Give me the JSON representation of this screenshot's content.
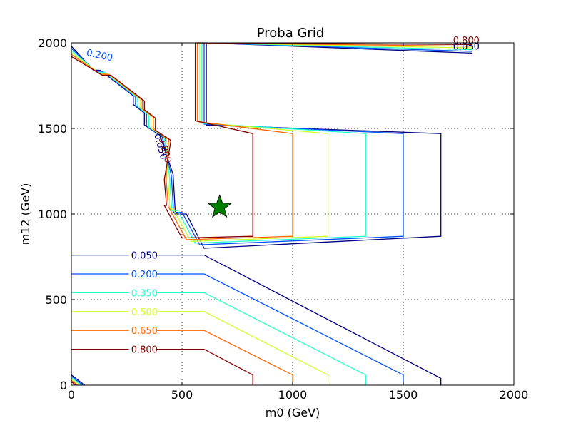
{
  "chart_data": {
    "type": "contour",
    "title": "Proba Grid",
    "xlabel": "m0 (GeV)",
    "ylabel": "m12 (GeV)",
    "xlim": [
      0,
      2000
    ],
    "ylim": [
      0,
      2000
    ],
    "xticks": [
      "0",
      "500",
      "1000",
      "1500",
      "2000"
    ],
    "yticks": [
      "0",
      "500",
      "1000",
      "1500",
      "2000"
    ],
    "grid": true,
    "marker": {
      "shape": "star",
      "color": "#008000",
      "x": 670,
      "y": 1040
    },
    "levels": [
      {
        "value": 0.05,
        "label": "0.050",
        "color": "#000080",
        "lower": [
          [
            0,
            760
          ],
          [
            600,
            760
          ],
          [
            1670,
            40
          ],
          [
            1670,
            0
          ]
        ],
        "upper": [
          [
            460,
            1560
          ],
          [
            520,
            1000
          ],
          [
            600,
            800
          ],
          [
            1670,
            870
          ],
          [
            1670,
            1470
          ],
          [
            610,
            1520
          ],
          [
            610,
            2000
          ]
        ],
        "topright": [
          [
            610,
            2000
          ],
          [
            1810,
            1940
          ]
        ]
      },
      {
        "value": 0.2,
        "label": "0.200",
        "color": "#0050ff",
        "lower": [
          [
            0,
            650
          ],
          [
            600,
            650
          ],
          [
            1500,
            60
          ],
          [
            1500,
            0
          ]
        ],
        "upper": [
          [
            440,
            1590
          ],
          [
            500,
            1010
          ],
          [
            580,
            820
          ],
          [
            1500,
            870
          ],
          [
            1500,
            1470
          ],
          [
            600,
            1525
          ],
          [
            600,
            2000
          ]
        ],
        "topright": [
          [
            600,
            2000
          ],
          [
            1810,
            1950
          ]
        ]
      },
      {
        "value": 0.35,
        "label": "0.350",
        "color": "#29ffce",
        "lower": [
          [
            0,
            540
          ],
          [
            600,
            540
          ],
          [
            1330,
            60
          ],
          [
            1330,
            0
          ]
        ],
        "upper": [
          [
            420,
            1610
          ],
          [
            480,
            1020
          ],
          [
            560,
            830
          ],
          [
            1330,
            870
          ],
          [
            1330,
            1470
          ],
          [
            590,
            1530
          ],
          [
            590,
            2000
          ]
        ],
        "topright": [
          [
            590,
            2000
          ],
          [
            1810,
            1960
          ]
        ]
      },
      {
        "value": 0.5,
        "label": "0.500",
        "color": "#ceff29",
        "lower": [
          [
            0,
            430
          ],
          [
            600,
            430
          ],
          [
            1160,
            60
          ],
          [
            1160,
            0
          ]
        ],
        "upper": [
          [
            400,
            1630
          ],
          [
            460,
            1030
          ],
          [
            540,
            840
          ],
          [
            1160,
            870
          ],
          [
            1160,
            1470
          ],
          [
            580,
            1535
          ],
          [
            580,
            2000
          ]
        ],
        "topright": [
          [
            580,
            2000
          ],
          [
            1810,
            1970
          ]
        ]
      },
      {
        "value": 0.65,
        "label": "0.650",
        "color": "#ff6800",
        "lower": [
          [
            0,
            320
          ],
          [
            600,
            320
          ],
          [
            1000,
            60
          ],
          [
            1000,
            0
          ]
        ],
        "upper": [
          [
            380,
            1650
          ],
          [
            440,
            1040
          ],
          [
            520,
            850
          ],
          [
            1000,
            870
          ],
          [
            1000,
            1470
          ],
          [
            570,
            1540
          ],
          [
            570,
            2000
          ]
        ],
        "topright": [
          [
            570,
            2000
          ],
          [
            1810,
            1980
          ]
        ]
      },
      {
        "value": 0.8,
        "label": "0.800",
        "color": "#800000",
        "lower": [
          [
            0,
            210
          ],
          [
            600,
            210
          ],
          [
            820,
            60
          ],
          [
            820,
            0
          ]
        ],
        "upper": [
          [
            360,
            1670
          ],
          [
            420,
            1050
          ],
          [
            500,
            860
          ],
          [
            820,
            870
          ],
          [
            820,
            1470
          ],
          [
            560,
            1545
          ],
          [
            560,
            2000
          ]
        ],
        "topright": [
          [
            560,
            2000
          ],
          [
            1810,
            1990
          ]
        ]
      }
    ]
  }
}
